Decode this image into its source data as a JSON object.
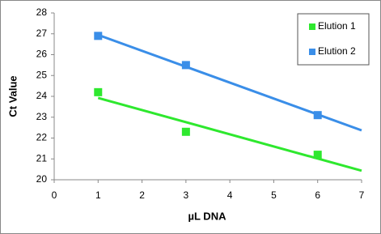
{
  "chart_data": {
    "type": "scatter",
    "x_label": "µL DNA",
    "y_label": "Ct Value",
    "series": [
      {
        "name": "Elution 1",
        "color": "#2ee82e",
        "x": [
          1,
          3,
          6
        ],
        "values": [
          24.2,
          22.3,
          21.2
        ]
      },
      {
        "name": "Elution 2",
        "color": "#3a8ee8",
        "x": [
          1,
          3,
          6
        ],
        "values": [
          26.9,
          25.5,
          23.1
        ]
      }
    ],
    "trendline": "linear",
    "xlim": [
      0,
      7
    ],
    "xticks": [
      0,
      1,
      2,
      3,
      4,
      5,
      6,
      7
    ],
    "ylim": [
      20,
      28
    ],
    "yticks": [
      20,
      21,
      22,
      23,
      24,
      25,
      26,
      27,
      28
    ],
    "grid": false,
    "legend": "top-right"
  }
}
